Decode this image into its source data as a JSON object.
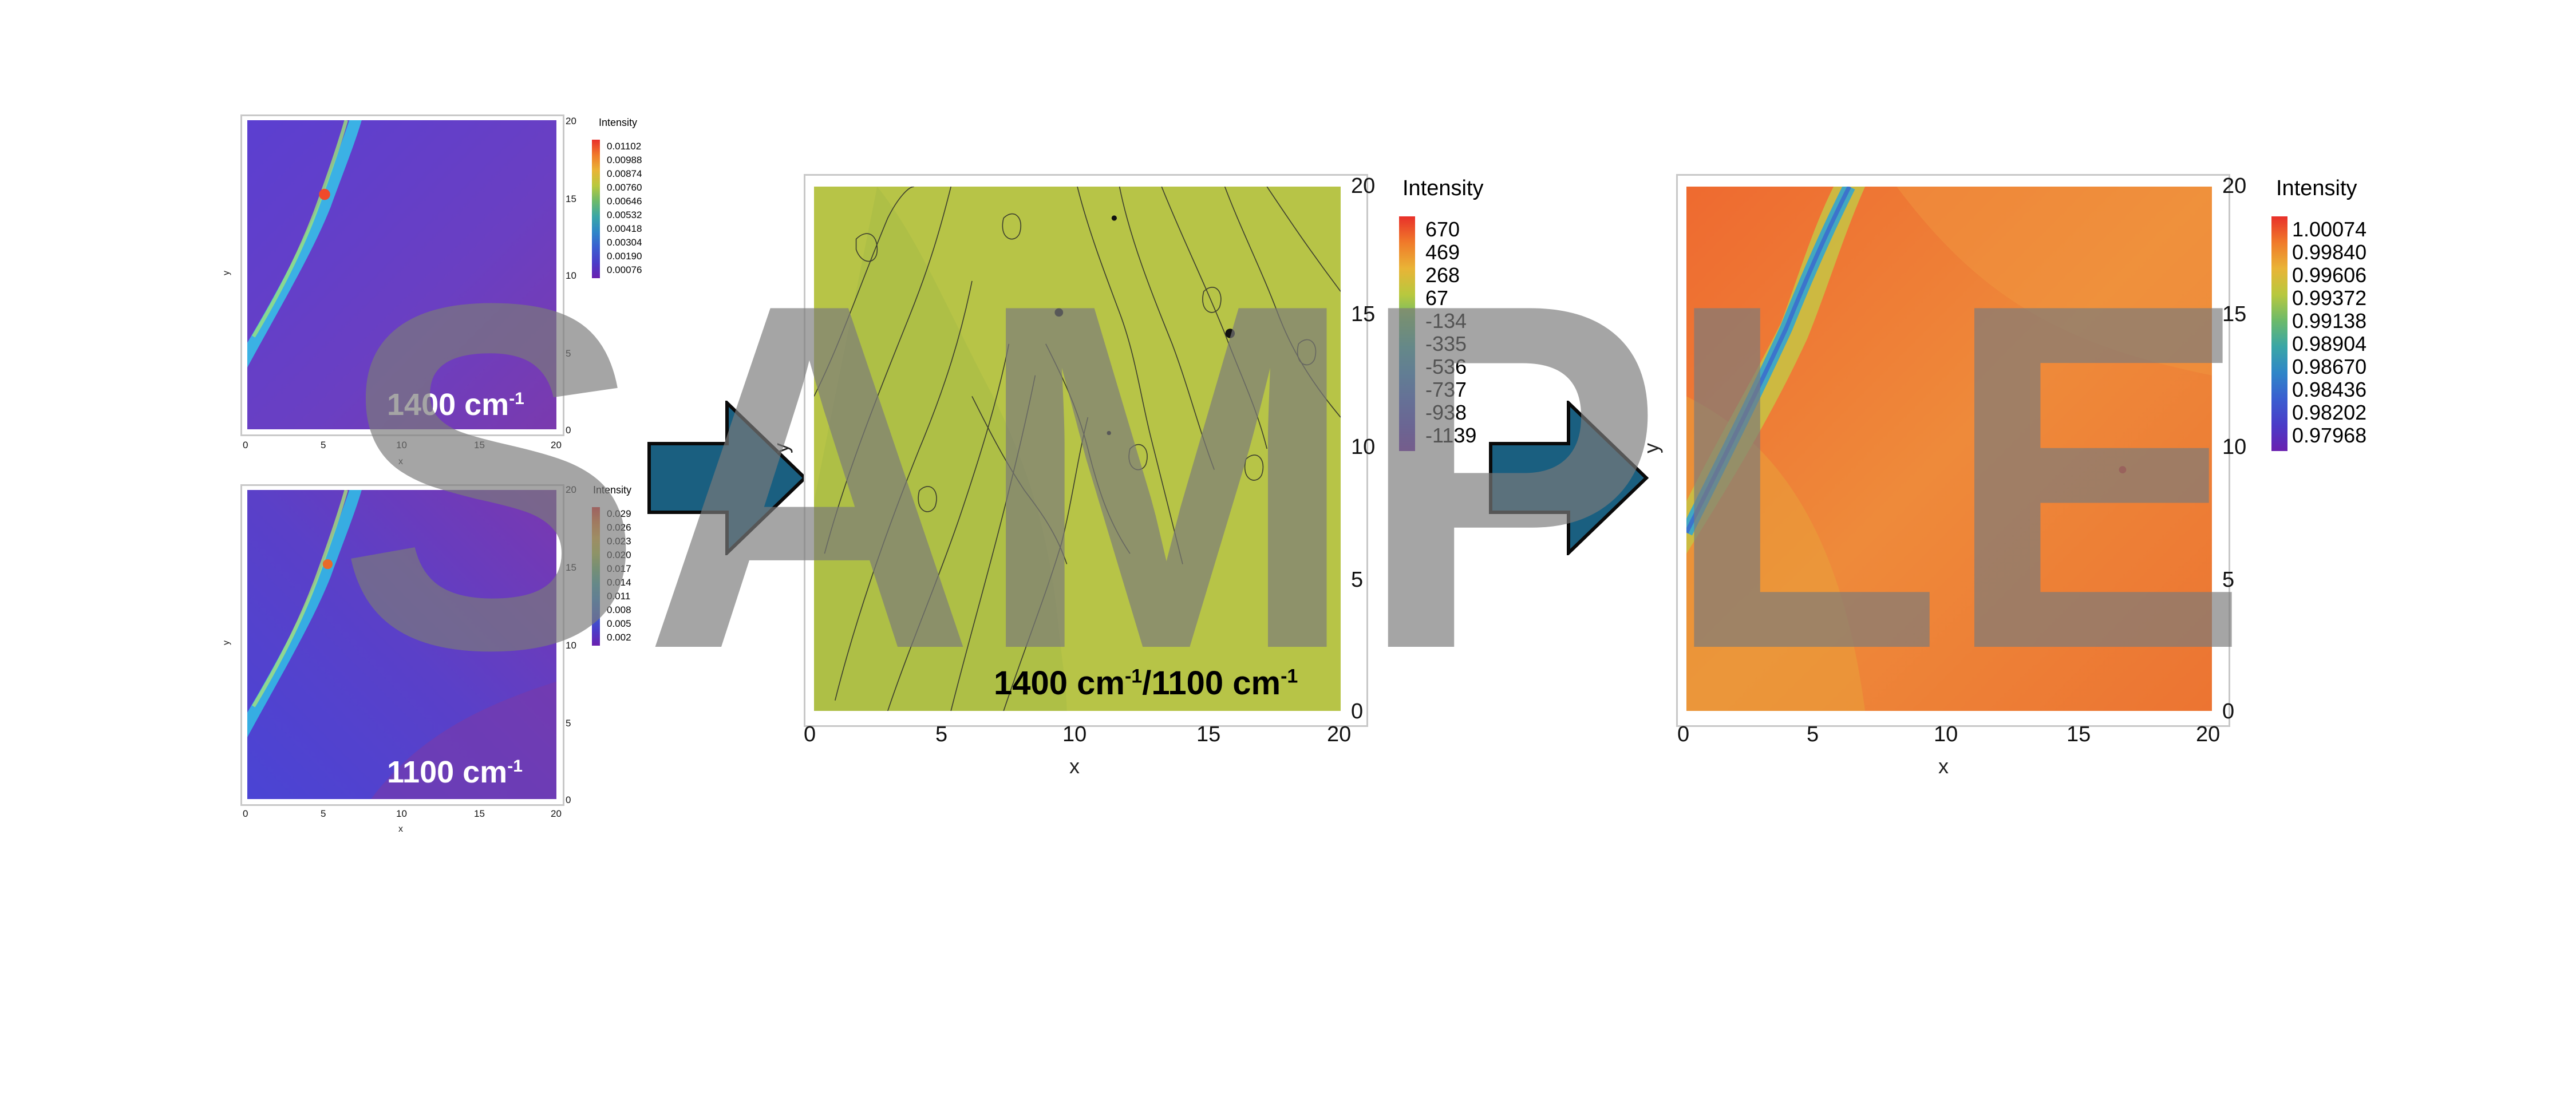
{
  "chart_data": [
    {
      "type": "heatmap",
      "title": "",
      "overlay_label": {
        "main": "1400 cm",
        "sup": "-1"
      },
      "xlabel": "x",
      "ylabel": "y",
      "xlim": [
        0,
        20
      ],
      "ylim": [
        0,
        20
      ],
      "xticks": [
        "0",
        "5",
        "10",
        "15",
        "20"
      ],
      "yticks": [
        "0",
        "5",
        "10",
        "15",
        "20"
      ],
      "colorbar": {
        "title": "Intensity",
        "ticks": [
          "0.01102",
          "0.00988",
          "0.00874",
          "0.00760",
          "0.00646",
          "0.00532",
          "0.00418",
          "0.00304",
          "0.00190",
          "0.00076"
        ],
        "colors": [
          "#e8302a",
          "#f07a2a",
          "#e9b436",
          "#b8c83e",
          "#6cba6a",
          "#3aa6a6",
          "#2f86c8",
          "#3a5ed0",
          "#4a3cc8",
          "#6a20b0"
        ]
      },
      "background_color": "#6a42c4",
      "feature_color": "#2fb8e0"
    },
    {
      "type": "heatmap",
      "title": "",
      "overlay_label": {
        "main": "1100 cm",
        "sup": "-1"
      },
      "xlabel": "x",
      "ylabel": "y",
      "xlim": [
        0,
        20
      ],
      "ylim": [
        0,
        20
      ],
      "xticks": [
        "0",
        "5",
        "10",
        "15",
        "20"
      ],
      "yticks": [
        "0",
        "5",
        "10",
        "15",
        "20"
      ],
      "colorbar": {
        "title": "Intensity",
        "ticks": [
          "0.029",
          "0.026",
          "0.023",
          "0.020",
          "0.017",
          "0.014",
          "0.011",
          "0.008",
          "0.005",
          "0.002"
        ],
        "colors": [
          "#e8302a",
          "#f07a2a",
          "#e9b436",
          "#b8c83e",
          "#6cba6a",
          "#3aa6a6",
          "#2f86c8",
          "#3a5ed0",
          "#4a3cc8",
          "#6a20b0"
        ]
      },
      "background_color": "#5a3ec8",
      "feature_color": "#2fb8e0"
    },
    {
      "type": "heatmap",
      "title": "",
      "overlay_label": {
        "part1": "1400 cm",
        "sup1": "-1",
        "part2": "/1100 cm",
        "sup2": "-1"
      },
      "xlabel": "x",
      "ylabel": "y",
      "xlim": [
        0,
        20
      ],
      "ylim": [
        0,
        20
      ],
      "xticks": [
        "0",
        "5",
        "10",
        "15",
        "20"
      ],
      "yticks": [
        "0",
        "5",
        "10",
        "15",
        "20"
      ],
      "colorbar": {
        "title": "Intensity",
        "ticks": [
          "670",
          "469",
          "268",
          "67",
          "-134",
          "-335",
          "-536",
          "-737",
          "-938",
          "-1139"
        ],
        "colors": [
          "#e8302a",
          "#f07a2a",
          "#e9b436",
          "#b8c83e",
          "#6cba6a",
          "#3aa6a6",
          "#2f86c8",
          "#3a5ed0",
          "#4a3cc8",
          "#6a20b0"
        ]
      },
      "background_color": "#b7c447",
      "contour_color": "#2a2a2a"
    },
    {
      "type": "heatmap",
      "title": "",
      "xlabel": "x",
      "ylabel": "y",
      "xlim": [
        0,
        20
      ],
      "ylim": [
        0,
        20
      ],
      "xticks": [
        "0",
        "5",
        "10",
        "15",
        "20"
      ],
      "yticks": [
        "0",
        "5",
        "10",
        "15",
        "20"
      ],
      "colorbar": {
        "title": "Intensity",
        "ticks": [
          "1.00074",
          "0.99840",
          "0.99606",
          "0.99372",
          "0.99138",
          "0.98904",
          "0.98670",
          "0.98436",
          "0.98202",
          "0.97968"
        ],
        "colors": [
          "#e8302a",
          "#f07a2a",
          "#e9b436",
          "#b8c83e",
          "#6cba6a",
          "#3aa6a6",
          "#2f86c8",
          "#3a5ed0",
          "#4a3cc8",
          "#6a20b0"
        ]
      },
      "background_color": "#ec7a36",
      "feature_color": "#3aa6c8"
    }
  ],
  "watermark": "SAMPLE",
  "colors": {
    "arrow_fill": "#1a5f80",
    "arrow_stroke": "#0a0a0a",
    "watermark": "#7a7a7a"
  }
}
